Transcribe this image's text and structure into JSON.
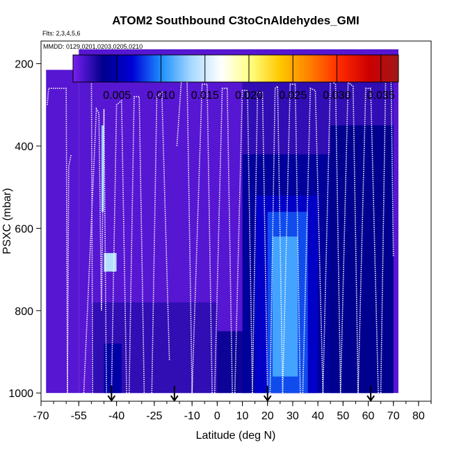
{
  "chart_data": {
    "type": "heatmap",
    "title": "ATOM2 Southbound C3toCnAldehydes_GMI",
    "subtitle_flights": "Flts: 2,3,4,5,6",
    "subtitle_dates": "MMDD: 0129,0201,0203,0205,0210",
    "xlabel": "Latitude (deg N)",
    "ylabel": "PSXC (mbar)",
    "xlim": [
      -70,
      85
    ],
    "ylim": [
      1020,
      145
    ],
    "x_ticks": [
      -70,
      -55,
      -40,
      -25,
      -10,
      0,
      10,
      20,
      30,
      40,
      50,
      60,
      70,
      80
    ],
    "x_tick_labels": [
      "-70",
      "-55",
      "-40",
      "-25",
      "-10",
      "0",
      "10",
      "20",
      "30",
      "40",
      "50",
      "60",
      "70",
      "80"
    ],
    "y_ticks": [
      200,
      400,
      600,
      800,
      1000
    ],
    "y_tick_labels": [
      "200",
      "400",
      "600",
      "800",
      "1000"
    ],
    "colorbar": {
      "range": [
        0,
        0.037
      ],
      "ticks": [
        0.005,
        0.01,
        0.015,
        0.02,
        0.025,
        0.03,
        0.035
      ],
      "tick_labels": [
        "0.005",
        "0.010",
        "0.015",
        "0.020",
        "0.025",
        "0.030",
        "0.035"
      ],
      "colors": [
        "#7a1ff0",
        "#00008b",
        "#0000d8",
        "#1e90ff",
        "#a8d8ff",
        "#ffffff",
        "#ffff80",
        "#ffc800",
        "#ff7f00",
        "#ff2a00",
        "#cc0000",
        "#a01818"
      ]
    },
    "background_value": 0.001,
    "regions": [
      {
        "lat": [
          -68,
          -55
        ],
        "p": [
          215,
          1000
        ],
        "value": 0.001
      },
      {
        "lat": [
          -55,
          72
        ],
        "p": [
          165,
          1000
        ],
        "value": 0.001
      },
      {
        "lat": [
          -50,
          0
        ],
        "p": [
          780,
          1000
        ],
        "value": 0.002
      },
      {
        "lat": [
          -45,
          -38
        ],
        "p": [
          880,
          1000
        ],
        "value": 0.0045
      },
      {
        "lat": [
          0,
          12
        ],
        "p": [
          850,
          1000
        ],
        "value": 0.003
      },
      {
        "lat": [
          10,
          70
        ],
        "p": [
          200,
          420
        ],
        "value": 0.002
      },
      {
        "lat": [
          10,
          70
        ],
        "p": [
          420,
          1000
        ],
        "value": 0.004
      },
      {
        "lat": [
          15,
          40
        ],
        "p": [
          520,
          1000
        ],
        "value": 0.006
      },
      {
        "lat": [
          20,
          36
        ],
        "p": [
          560,
          1000
        ],
        "value": 0.0085
      },
      {
        "lat": [
          22,
          32
        ],
        "p": [
          620,
          960
        ],
        "value": 0.011
      },
      {
        "lat": [
          45,
          70
        ],
        "p": [
          350,
          1000
        ],
        "value": 0.0035
      },
      {
        "lat": [
          -46,
          -45
        ],
        "p": [
          350,
          560
        ],
        "value": 0.013
      },
      {
        "lat": [
          -45,
          -40
        ],
        "p": [
          660,
          705
        ],
        "value": 0.014
      }
    ],
    "flight_tracks": [
      {
        "lat": [
          -67.5,
          -67,
          -63,
          -60,
          -59.5,
          -59,
          -58
        ],
        "p": [
          300,
          260,
          260,
          260,
          1000,
          450,
          420
        ]
      },
      {
        "lat": [
          -56,
          -54.5,
          -50,
          -49.5
        ],
        "p": [
          240,
          200,
          200,
          1000
        ]
      },
      {
        "lat": [
          -53,
          -48,
          -47,
          -46,
          -45,
          -44
        ],
        "p": [
          1000,
          310,
          320,
          800,
          310,
          1000
        ]
      },
      {
        "lat": [
          -42,
          -40,
          -38,
          -36
        ],
        "p": [
          1000,
          300,
          290,
          1000
        ]
      },
      {
        "lat": [
          -35,
          -33,
          -31,
          -29
        ],
        "p": [
          1000,
          280,
          280,
          1000
        ]
      },
      {
        "lat": [
          -26,
          -24,
          -22,
          -19
        ],
        "p": [
          1000,
          280,
          270,
          920
        ]
      },
      {
        "lat": [
          -16,
          -14,
          -12,
          -10
        ],
        "p": [
          400,
          220,
          220,
          1000
        ]
      },
      {
        "lat": [
          -10,
          -6,
          -4,
          -2
        ],
        "p": [
          1000,
          250,
          250,
          1000
        ]
      },
      {
        "lat": [
          -1,
          2,
          4,
          6
        ],
        "p": [
          1000,
          260,
          260,
          1000
        ]
      },
      {
        "lat": [
          7,
          10,
          12,
          14
        ],
        "p": [
          1000,
          265,
          265,
          1000
        ]
      },
      {
        "lat": [
          14,
          16,
          18,
          20
        ],
        "p": [
          1000,
          270,
          270,
          1000
        ]
      },
      {
        "lat": [
          21,
          23,
          24,
          26
        ],
        "p": [
          1000,
          260,
          255,
          1000
        ]
      },
      {
        "lat": [
          26,
          29,
          31,
          33
        ],
        "p": [
          1000,
          250,
          250,
          1000
        ]
      },
      {
        "lat": [
          34,
          37,
          39,
          42
        ],
        "p": [
          1000,
          260,
          265,
          1000
        ]
      },
      {
        "lat": [
          42,
          45,
          47,
          49
        ],
        "p": [
          1000,
          240,
          250,
          1000
        ]
      },
      {
        "lat": [
          49,
          52,
          54,
          56
        ],
        "p": [
          1000,
          245,
          255,
          1000
        ]
      },
      {
        "lat": [
          56,
          59,
          61,
          64
        ],
        "p": [
          1000,
          260,
          260,
          1000
        ]
      },
      {
        "lat": [
          65,
          67,
          69,
          70
        ],
        "p": [
          1000,
          200,
          200,
          670
        ]
      }
    ],
    "arrows_lat": [
      -42,
      -17,
      20,
      61
    ]
  }
}
